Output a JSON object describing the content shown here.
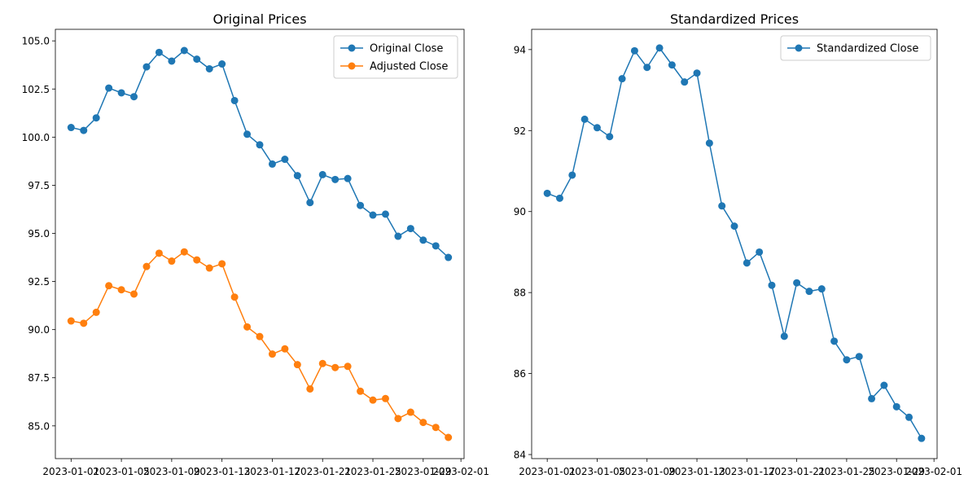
{
  "chart_data": [
    {
      "type": "line",
      "title": "Original Prices",
      "xlabel": "",
      "ylabel": "",
      "x_type": "date",
      "x": [
        "2023-01-01",
        "2023-01-02",
        "2023-01-03",
        "2023-01-04",
        "2023-01-05",
        "2023-01-06",
        "2023-01-07",
        "2023-01-08",
        "2023-01-09",
        "2023-01-10",
        "2023-01-11",
        "2023-01-12",
        "2023-01-13",
        "2023-01-14",
        "2023-01-15",
        "2023-01-16",
        "2023-01-17",
        "2023-01-18",
        "2023-01-19",
        "2023-01-20",
        "2023-01-21",
        "2023-01-22",
        "2023-01-23",
        "2023-01-24",
        "2023-01-25",
        "2023-01-26",
        "2023-01-27",
        "2023-01-28",
        "2023-01-29",
        "2023-01-30",
        "2023-01-31"
      ],
      "xlim": [
        "2022-12-30T18:00",
        "2023-02-01T06:00"
      ],
      "xticks": [
        "2023-01-01",
        "2023-01-05",
        "2023-01-09",
        "2023-01-13",
        "2023-01-17",
        "2023-01-21",
        "2023-01-25",
        "2023-01-29",
        "2023-02-01"
      ],
      "ylim": [
        83.3,
        105.6
      ],
      "yticks": [
        85.0,
        87.5,
        90.0,
        92.5,
        95.0,
        97.5,
        100.0,
        102.5,
        105.0
      ],
      "ytick_labels": [
        "85.0",
        "87.5",
        "90.0",
        "92.5",
        "95.0",
        "97.5",
        "100.0",
        "102.5",
        "105.0"
      ],
      "grid": false,
      "legend_position": "top-right",
      "series": [
        {
          "name": "Original Close",
          "color": "#1f77b4",
          "marker": "circle",
          "values": [
            100.5,
            100.35,
            101.0,
            102.55,
            102.3,
            102.1,
            103.65,
            104.4,
            103.95,
            104.5,
            104.05,
            103.55,
            103.8,
            101.9,
            100.15,
            99.6,
            98.6,
            98.85,
            98.0,
            96.6,
            98.05,
            97.8,
            97.85,
            96.45,
            95.95,
            96.0,
            94.85,
            95.25,
            94.65,
            94.35,
            93.75
          ]
        },
        {
          "name": "Adjusted Close",
          "color": "#ff7f0e",
          "marker": "circle",
          "values": [
            90.45,
            90.33,
            90.9,
            92.28,
            92.07,
            91.85,
            93.28,
            93.97,
            93.56,
            94.04,
            93.62,
            93.2,
            93.42,
            91.69,
            90.14,
            89.64,
            88.73,
            89.0,
            88.18,
            86.92,
            88.24,
            88.03,
            88.09,
            86.8,
            86.34,
            86.42,
            85.38,
            85.71,
            85.18,
            84.92,
            84.4
          ]
        }
      ]
    },
    {
      "type": "line",
      "title": "Standardized Prices",
      "xlabel": "",
      "ylabel": "",
      "x_type": "date",
      "x": [
        "2023-01-01",
        "2023-01-02",
        "2023-01-03",
        "2023-01-04",
        "2023-01-05",
        "2023-01-06",
        "2023-01-07",
        "2023-01-08",
        "2023-01-09",
        "2023-01-10",
        "2023-01-11",
        "2023-01-12",
        "2023-01-13",
        "2023-01-14",
        "2023-01-15",
        "2023-01-16",
        "2023-01-17",
        "2023-01-18",
        "2023-01-19",
        "2023-01-20",
        "2023-01-21",
        "2023-01-22",
        "2023-01-23",
        "2023-01-24",
        "2023-01-25",
        "2023-01-26",
        "2023-01-27",
        "2023-01-28",
        "2023-01-29",
        "2023-01-30",
        "2023-01-31"
      ],
      "xlim": [
        "2022-12-30T18:00",
        "2023-02-01T06:00"
      ],
      "xticks": [
        "2023-01-01",
        "2023-01-05",
        "2023-01-09",
        "2023-01-13",
        "2023-01-17",
        "2023-01-21",
        "2023-01-25",
        "2023-01-29",
        "2023-02-01"
      ],
      "ylim": [
        83.9,
        94.5
      ],
      "yticks": [
        84,
        86,
        88,
        90,
        92,
        94
      ],
      "ytick_labels": [
        "84",
        "86",
        "88",
        "90",
        "92",
        "94"
      ],
      "grid": false,
      "legend_position": "top-right",
      "series": [
        {
          "name": "Standardized Close",
          "color": "#1f77b4",
          "marker": "circle",
          "values": [
            90.45,
            90.33,
            90.9,
            92.28,
            92.07,
            91.85,
            93.28,
            93.97,
            93.56,
            94.04,
            93.62,
            93.2,
            93.42,
            91.69,
            90.14,
            89.64,
            88.73,
            89.0,
            88.18,
            86.92,
            88.24,
            88.03,
            88.09,
            86.8,
            86.34,
            86.42,
            85.38,
            85.71,
            85.18,
            84.92,
            84.4
          ]
        }
      ]
    }
  ]
}
